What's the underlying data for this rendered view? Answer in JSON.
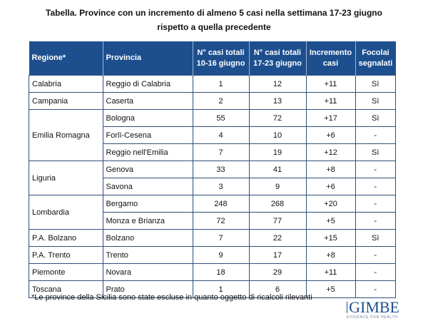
{
  "title": {
    "line1": "Tabella. Province con un incremento di almeno 5 casi nella settimana 17-23 giugno",
    "line2": "rispetto a quella precedente"
  },
  "headers": [
    "Regione*",
    "Provincia",
    "N° casi totali 10-16 giugno",
    "N° casi totali 17-23 giugno",
    "Incremento casi",
    "Focolai segnalati"
  ],
  "rows": [
    {
      "regione": "Calabria",
      "provincia": "Reggio di Calabria",
      "c1": "1",
      "c2": "12",
      "inc": "+11",
      "foc": "Sì"
    },
    {
      "regione": "Campania",
      "provincia": "Caserta",
      "c1": "2",
      "c2": "13",
      "inc": "+11",
      "foc": "Sì"
    },
    {
      "regione": "Emilia Romagna",
      "provincia": "Bologna",
      "c1": "55",
      "c2": "72",
      "inc": "+17",
      "foc": "Sì"
    },
    {
      "regione": "",
      "provincia": "Forlì-Cesena",
      "c1": "4",
      "c2": "10",
      "inc": "+6",
      "foc": "-"
    },
    {
      "regione": "",
      "provincia": "Reggio nell'Emilia",
      "c1": "7",
      "c2": "19",
      "inc": "+12",
      "foc": "Sì"
    },
    {
      "regione": "Liguria",
      "provincia": "Genova",
      "c1": "33",
      "c2": "41",
      "inc": "+8",
      "foc": "-"
    },
    {
      "regione": "",
      "provincia": "Savona",
      "c1": "3",
      "c2": "9",
      "inc": "+6",
      "foc": "-"
    },
    {
      "regione": "Lombardia",
      "provincia": "Bergamo",
      "c1": "248",
      "c2": "268",
      "inc": "+20",
      "foc": "-"
    },
    {
      "regione": "",
      "provincia": "Monza e Brianza",
      "c1": "72",
      "c2": "77",
      "inc": "+5",
      "foc": "-"
    },
    {
      "regione": "P.A. Bolzano",
      "provincia": "Bolzano",
      "c1": "7",
      "c2": "22",
      "inc": "+15",
      "foc": "Sì"
    },
    {
      "regione": "P.A. Trento",
      "provincia": "Trento",
      "c1": "9",
      "c2": "17",
      "inc": "+8",
      "foc": "-"
    },
    {
      "regione": "Piemonte",
      "provincia": "Novara",
      "c1": "18",
      "c2": "29",
      "inc": "+11",
      "foc": "-"
    },
    {
      "regione": "Toscana",
      "provincia": "Prato",
      "c1": "1",
      "c2": "6",
      "inc": "+5",
      "foc": "-"
    }
  ],
  "footnote": "*Le province della Sicilia sono state escluse in quanto oggetto di ricalcoli rilevanti",
  "logo": {
    "name": "GIMBE",
    "tagline": "EVIDENCE FOR HEALTH"
  },
  "colors": {
    "header": "#1d4f8f"
  }
}
